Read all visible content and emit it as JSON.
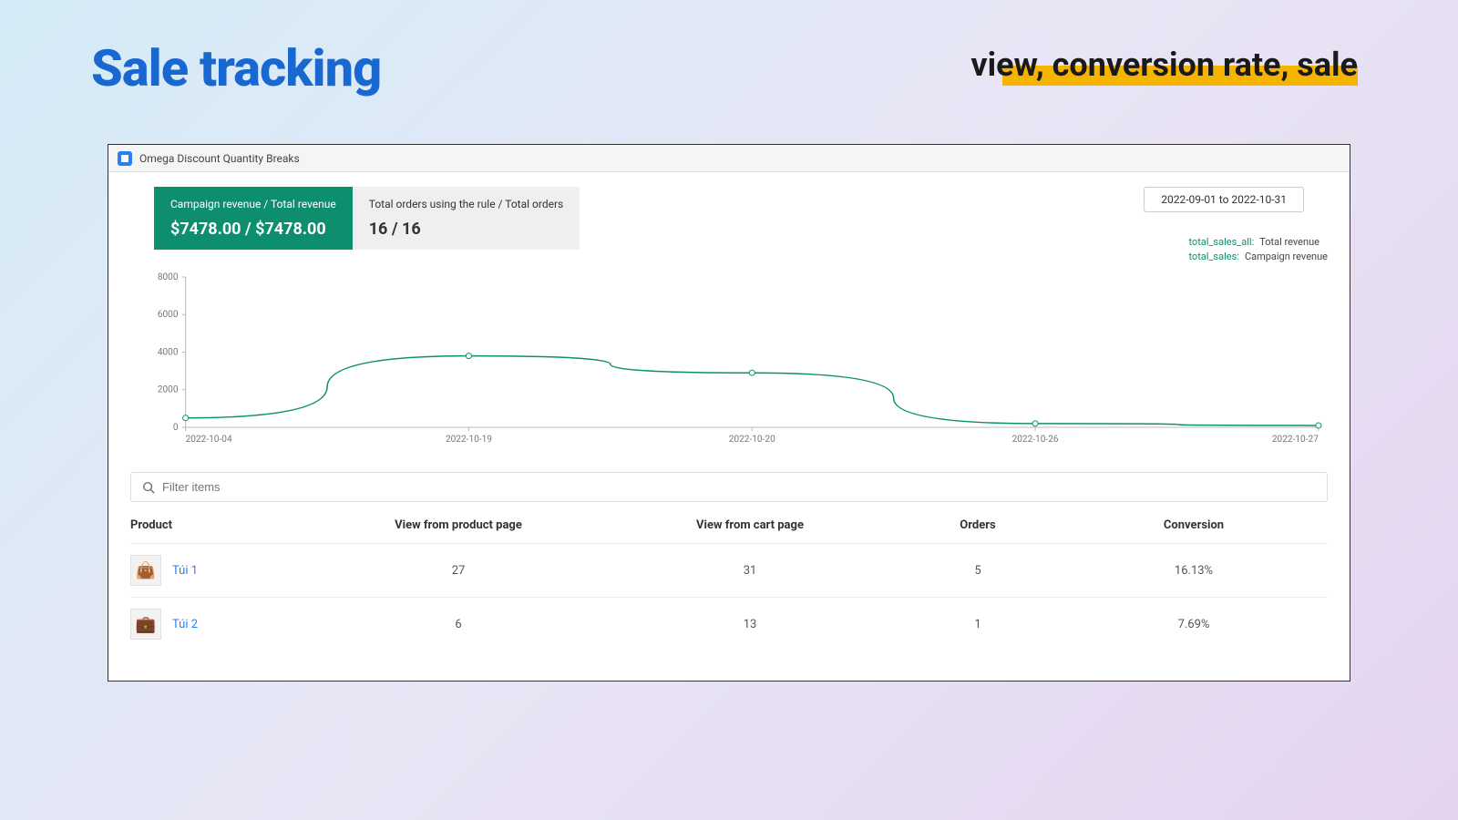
{
  "page": {
    "title": "Sale tracking",
    "subtitle": "view, conversion rate, sale",
    "title_color": "#1968d2",
    "highlight_color": "#f5b400",
    "bg_gradient": [
      "#d4ecf7",
      "#e8e5f5",
      "#e5d4ef"
    ]
  },
  "app": {
    "name": "Omega Discount Quantity Breaks",
    "logo_icon": "O"
  },
  "stats": {
    "card1": {
      "label": "Campaign revenue / Total revenue",
      "value": "$7478.00 / $7478.00",
      "bg": "#0d8f6f",
      "text": "#ffffff"
    },
    "card2": {
      "label": "Total orders using the rule / Total orders",
      "value": "16 / 16",
      "bg": "#efefef",
      "text": "#333333"
    }
  },
  "date_range": {
    "text": "2022-09-01   to   2022-10-31"
  },
  "legend": {
    "items": [
      {
        "key": "total_sales_all:",
        "label": "Total revenue"
      },
      {
        "key": "total_sales:",
        "label": "Campaign revenue"
      }
    ],
    "key_color": "#0d8f6f"
  },
  "chart": {
    "type": "line",
    "ylim": [
      0,
      8000
    ],
    "yticks": [
      0,
      2000,
      4000,
      6000,
      8000
    ],
    "xticks": [
      "2022-10-04",
      "2022-10-19",
      "2022-10-20",
      "2022-10-26",
      "2022-10-27"
    ],
    "series": [
      {
        "name": "total_sales_all",
        "color": "#0d8f6f",
        "stroke_width": 1.5,
        "marker": "circle",
        "marker_size": 3,
        "points": [
          {
            "x": 0,
            "y": 500
          },
          {
            "x": 1,
            "y": 3800
          },
          {
            "x": 2,
            "y": 2900
          },
          {
            "x": 3,
            "y": 200
          },
          {
            "x": 4,
            "y": 100
          }
        ]
      }
    ],
    "axis_color": "#bbbbbb",
    "tick_font_size": 10,
    "tick_color": "#777777",
    "grid": false,
    "background_color": "#ffffff"
  },
  "filter": {
    "placeholder": "Filter items"
  },
  "table": {
    "columns": [
      "Product",
      "View from product page",
      "View from cart page",
      "Orders",
      "Conversion"
    ],
    "rows": [
      {
        "product": "Túi 1",
        "thumb": "bag1",
        "view_product": "27",
        "view_cart": "31",
        "orders": "5",
        "conversion": "16.13%"
      },
      {
        "product": "Túi 2",
        "thumb": "bag2",
        "view_product": "6",
        "view_cart": "13",
        "orders": "1",
        "conversion": "7.69%"
      }
    ],
    "link_color": "#2a7ff0"
  }
}
